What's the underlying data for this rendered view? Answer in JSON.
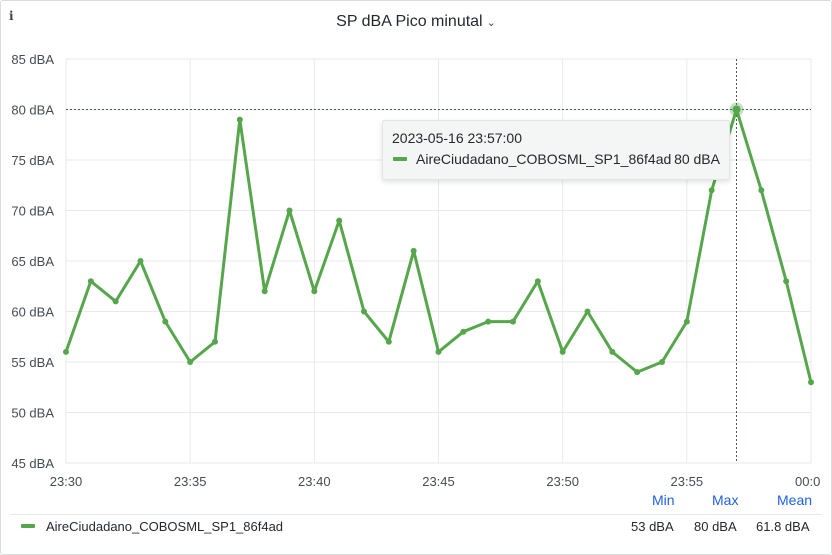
{
  "panel": {
    "info_icon": "info-icon",
    "title": "SP dBA Pico minutal",
    "title_menu_icon": "chevron-down-icon"
  },
  "chart_data": {
    "type": "line",
    "x_ticks": [
      "23:30",
      "23:35",
      "23:40",
      "23:45",
      "23:50",
      "23:55",
      "00:0"
    ],
    "y_ticks": [
      "85 dBA",
      "80 dBA",
      "75 dBA",
      "70 dBA",
      "65 dBA",
      "60 dBA",
      "55 dBA",
      "50 dBA",
      "45 dBA"
    ],
    "ylim": [
      45,
      85
    ],
    "xlim": [
      "23:30",
      "00:00"
    ],
    "grid": true,
    "legend_placement": "bottom",
    "series": [
      {
        "name": "AireCiudadano_COBOSML_SP1_86f4ad",
        "color": "#56a64b",
        "x": [
          "23:30",
          "23:31",
          "23:32",
          "23:33",
          "23:34",
          "23:35",
          "23:36",
          "23:37",
          "23:38",
          "23:39",
          "23:40",
          "23:41",
          "23:42",
          "23:43",
          "23:44",
          "23:45",
          "23:46",
          "23:47",
          "23:48",
          "23:49",
          "23:50",
          "23:51",
          "23:52",
          "23:53",
          "23:54",
          "23:55",
          "23:56",
          "23:57",
          "23:58",
          "23:59",
          "00:00"
        ],
        "values": [
          56,
          63,
          61,
          65,
          59,
          55,
          57,
          79,
          62,
          70,
          62,
          69,
          60,
          57,
          66,
          56,
          58,
          59,
          59,
          63,
          56,
          60,
          56,
          54,
          55,
          59,
          72,
          80,
          72,
          63,
          53
        ]
      }
    ],
    "crosshair": {
      "x": "23:57",
      "y": 80
    },
    "tooltip": {
      "time": "2023-05-16 23:57:00",
      "series": "AireCiudadano_COBOSML_SP1_86f4ad",
      "value": "80 dBA"
    }
  },
  "legend": {
    "headers": {
      "min": "Min",
      "max": "Max",
      "mean": "Mean"
    },
    "rows": [
      {
        "name": "AireCiudadano_COBOSML_SP1_86f4ad",
        "min": "53 dBA",
        "max": "80 dBA",
        "mean": "61.8 dBA"
      }
    ]
  }
}
